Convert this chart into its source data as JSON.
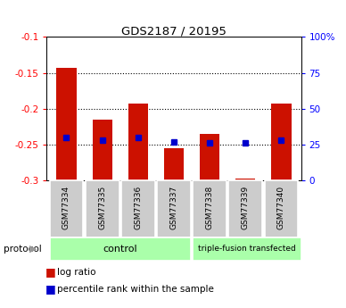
{
  "title": "GDS2187 / 20195",
  "samples": [
    "GSM77334",
    "GSM77335",
    "GSM77336",
    "GSM77337",
    "GSM77338",
    "GSM77339",
    "GSM77340"
  ],
  "log_ratio": [
    -0.143,
    -0.215,
    -0.193,
    -0.255,
    -0.235,
    -0.298,
    -0.193
  ],
  "percentile": [
    30,
    28,
    30,
    27,
    26,
    26,
    28
  ],
  "ylim_left": [
    -0.3,
    -0.1
  ],
  "ylim_right": [
    0,
    100
  ],
  "yticks_left": [
    -0.3,
    -0.25,
    -0.2,
    -0.15,
    -0.1
  ],
  "ytick_labels_left": [
    "-0.3",
    "-0.25",
    "-0.2",
    "-0.15",
    "-0.1"
  ],
  "yticks_right": [
    0,
    25,
    50,
    75,
    100
  ],
  "ytick_labels_right": [
    "0",
    "25",
    "50",
    "75",
    "100%"
  ],
  "bar_color": "#cc1100",
  "dot_color": "#0000cc",
  "control_count": 4,
  "transfected_count": 3,
  "control_label": "control",
  "transfected_label": "triple-fusion transfected",
  "protocol_label": "protocol",
  "legend_log_ratio": "log ratio",
  "legend_percentile": "percentile rank within the sample",
  "bar_bottom": -0.3,
  "group_bg_color": "#aaffaa",
  "sample_box_color": "#cccccc",
  "bg_color": "#ffffff",
  "grid_ticks": [
    -0.15,
    -0.2,
    -0.25
  ]
}
